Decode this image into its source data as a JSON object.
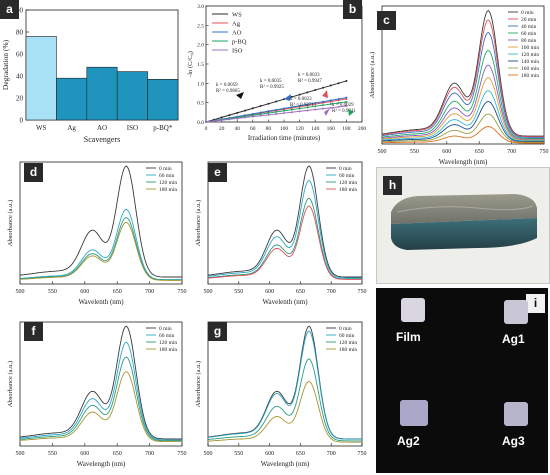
{
  "chart_data": [
    {
      "id": "a",
      "type": "bar",
      "panel_label": "a",
      "categories": [
        "WS",
        "Ag",
        "AO",
        "ISO",
        "p-BQ*"
      ],
      "values": [
        76,
        38,
        48,
        44,
        37
      ],
      "colors": [
        "#a8e1f5",
        "#1f95bd",
        "#1f95bd",
        "#1f95bd",
        "#1f95bd"
      ],
      "xlabel": "Scavengers",
      "ylabel": "Degradation (%)",
      "ylim": [
        0,
        100
      ],
      "yticks": [
        0,
        20,
        40,
        60,
        80,
        100
      ]
    },
    {
      "id": "b",
      "type": "line",
      "panel_label": "b",
      "xlabel": "Irradiation time (minutes)",
      "ylabel": "-ln (C/C₀)",
      "xlim": [
        0,
        200
      ],
      "ylim": [
        0,
        3.0
      ],
      "xticks": [
        0,
        20,
        40,
        60,
        80,
        100,
        120,
        140,
        160,
        180,
        200
      ],
      "yticks": [
        0.0,
        0.5,
        1.0,
        1.5,
        2.0,
        2.5,
        3.0
      ],
      "legend_position": "top-left",
      "series": [
        {
          "name": "WS",
          "color": "#2b2b2b",
          "slope": 0.0059
        },
        {
          "name": "Ag",
          "color": "#e0505a",
          "slope": 0.0033
        },
        {
          "name": "AO",
          "color": "#3070c0",
          "slope": 0.0035
        },
        {
          "name": "p-BQ",
          "color": "#20a060",
          "slope": 0.0029
        },
        {
          "name": "ISO",
          "color": "#a070c0",
          "slope": 0.0023
        }
      ],
      "annotations": [
        {
          "k": "k = 0.0059",
          "r2": "R² = 0.9865",
          "color": "#2b2b2b"
        },
        {
          "k": "k = 0.0035",
          "r2": "R² = 0.9925",
          "color": "#3070c0"
        },
        {
          "k": "k = 0.0033",
          "r2": "R² = 0.9947",
          "color": "#e0505a"
        },
        {
          "k": "k = 0.0023",
          "r2": "R² = 0.9271",
          "color": "#a070c0"
        },
        {
          "k": "k = 0.0029",
          "r2": "R² = 0.9941",
          "color": "#20a060"
        }
      ]
    },
    {
      "id": "c",
      "type": "line",
      "panel_label": "c",
      "xlabel": "Wavelength (nm)",
      "ylabel": "Absorbance (a.u.)",
      "xlim": [
        500,
        750
      ],
      "xticks": [
        500,
        550,
        600,
        650,
        700,
        750
      ],
      "series": [
        {
          "name": "0 min",
          "color": "#3a3a3a",
          "peak": 2.45
        },
        {
          "name": "20 min",
          "color": "#e0505a",
          "peak": 2.28
        },
        {
          "name": "40 min",
          "color": "#3a6fc4",
          "peak": 2.05
        },
        {
          "name": "60 min",
          "color": "#25a868",
          "peak": 1.72
        },
        {
          "name": "80 min",
          "color": "#8a5cc0",
          "peak": 1.45
        },
        {
          "name": "100 min",
          "color": "#e0a030",
          "peak": 1.22
        },
        {
          "name": "120 min",
          "color": "#35b7d9",
          "peak": 0.98
        },
        {
          "name": "140 min",
          "color": "#1a4f8f",
          "peak": 0.78
        },
        {
          "name": "160 min",
          "color": "#9aa040",
          "peak": 0.55
        },
        {
          "name": "180 min",
          "color": "#e07020",
          "peak": 0.32
        }
      ]
    },
    {
      "id": "d",
      "type": "line",
      "panel_label": "d",
      "xlabel": "Wavelenth (nm)",
      "ylabel": "Absorbance (a.u.)",
      "xlim": [
        500,
        750
      ],
      "xticks": [
        500,
        550,
        600,
        650,
        700,
        750
      ],
      "series": [
        {
          "name": "0 min",
          "color": "#3a3a3a",
          "peak": 2.45
        },
        {
          "name": "60 min",
          "color": "#2aa8c8",
          "peak": 1.55
        },
        {
          "name": "120 min",
          "color": "#2e9a80",
          "peak": 1.38
        },
        {
          "name": "180 min",
          "color": "#a89530",
          "peak": 1.28
        }
      ]
    },
    {
      "id": "e",
      "type": "line",
      "panel_label": "e",
      "xlabel": "Wavelenth (nm)",
      "ylabel": "Absorbance (a.u.)",
      "xlim": [
        500,
        750
      ],
      "xticks": [
        500,
        550,
        600,
        650,
        700,
        750
      ],
      "series": [
        {
          "name": "0 min",
          "color": "#3a3a3a",
          "peak": 2.45
        },
        {
          "name": "60 min",
          "color": "#2aa8c8",
          "peak": 2.15
        },
        {
          "name": "120 min",
          "color": "#2e9a80",
          "peak": 1.78
        },
        {
          "name": "180 min",
          "color": "#e0505a",
          "peak": 1.62
        }
      ]
    },
    {
      "id": "f",
      "type": "line",
      "panel_label": "f",
      "xlabel": "Wavelength (nm)",
      "ylabel": "Absorbance (a.u.)",
      "xlim": [
        500,
        750
      ],
      "xticks": [
        500,
        550,
        600,
        650,
        700,
        750
      ],
      "series": [
        {
          "name": "0 min",
          "color": "#3a3a3a",
          "peak": 2.45
        },
        {
          "name": "60 min",
          "color": "#2aa8c8",
          "peak": 2.12
        },
        {
          "name": "120 min",
          "color": "#2e9a80",
          "peak": 1.82
        },
        {
          "name": "180 min",
          "color": "#a89530",
          "peak": 1.52
        }
      ]
    },
    {
      "id": "g",
      "type": "line",
      "panel_label": "g",
      "xlabel": "Wavelength (nm)",
      "ylabel": "Absorbance (a.u.)",
      "xlim": [
        500,
        750
      ],
      "xticks": [
        500,
        550,
        600,
        650,
        700,
        750
      ],
      "series": [
        {
          "name": "0 min",
          "color": "#3a3a3a",
          "peak": 2.45
        },
        {
          "name": "60 min",
          "color": "#2aa8c8",
          "peak": 2.35
        },
        {
          "name": "120 min",
          "color": "#2e9a80",
          "peak": 1.78
        },
        {
          "name": "180 min",
          "color": "#a89530",
          "peak": 1.32
        }
      ]
    }
  ],
  "photos": {
    "h": {
      "panel_label": "h"
    },
    "i": {
      "panel_label": "i",
      "labels": [
        "Film",
        "Ag1",
        "Ag2",
        "Ag3"
      ]
    }
  }
}
